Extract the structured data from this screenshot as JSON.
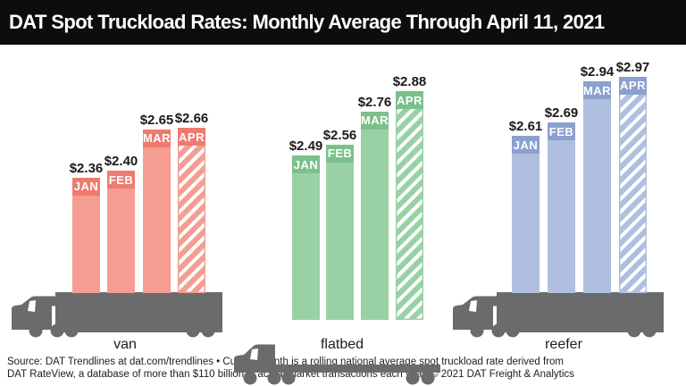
{
  "title": "DAT Spot Truckload Rates: Monthly Average Through April 11, 2021",
  "chart_data": {
    "type": "bar",
    "title": "DAT Spot Truckload Rates: Monthly Average Through April 11, 2021",
    "categories": [
      "JAN",
      "FEB",
      "MAR",
      "APR"
    ],
    "value_prefix": "$",
    "value_labels": "above bars",
    "legend": "none",
    "axes": "none (pictorial infographic; bars stand on truck illustrations)",
    "hatched_category": "APR",
    "groups": [
      {
        "name": "van",
        "values": [
          2.36,
          2.4,
          2.65,
          2.66
        ],
        "bar_color": "#f59c93",
        "band_color": "#ee7b6f"
      },
      {
        "name": "flatbed",
        "values": [
          2.49,
          2.56,
          2.76,
          2.88
        ],
        "bar_color": "#98d2a4",
        "band_color": "#7cc08c"
      },
      {
        "name": "reefer",
        "values": [
          2.61,
          2.69,
          2.94,
          2.97
        ],
        "bar_color": "#aebfdf",
        "band_color": "#8ba1cd"
      }
    ]
  },
  "footer": {
    "lines": [
      "Source: DAT Trendlines at dat.com/trendlines • Current month is a rolling national average spot truckload rate derived from",
      "DAT RateView, a database of more than $110 billion in actual market transactions each year. © 2021 DAT Freight & Analytics"
    ]
  },
  "colors": {
    "title_bg": "#0d0d0d",
    "title_text": "#ffffff",
    "background": "#ffffff",
    "truck": "#6a6b6d",
    "value_label": "#1a1a1a"
  }
}
